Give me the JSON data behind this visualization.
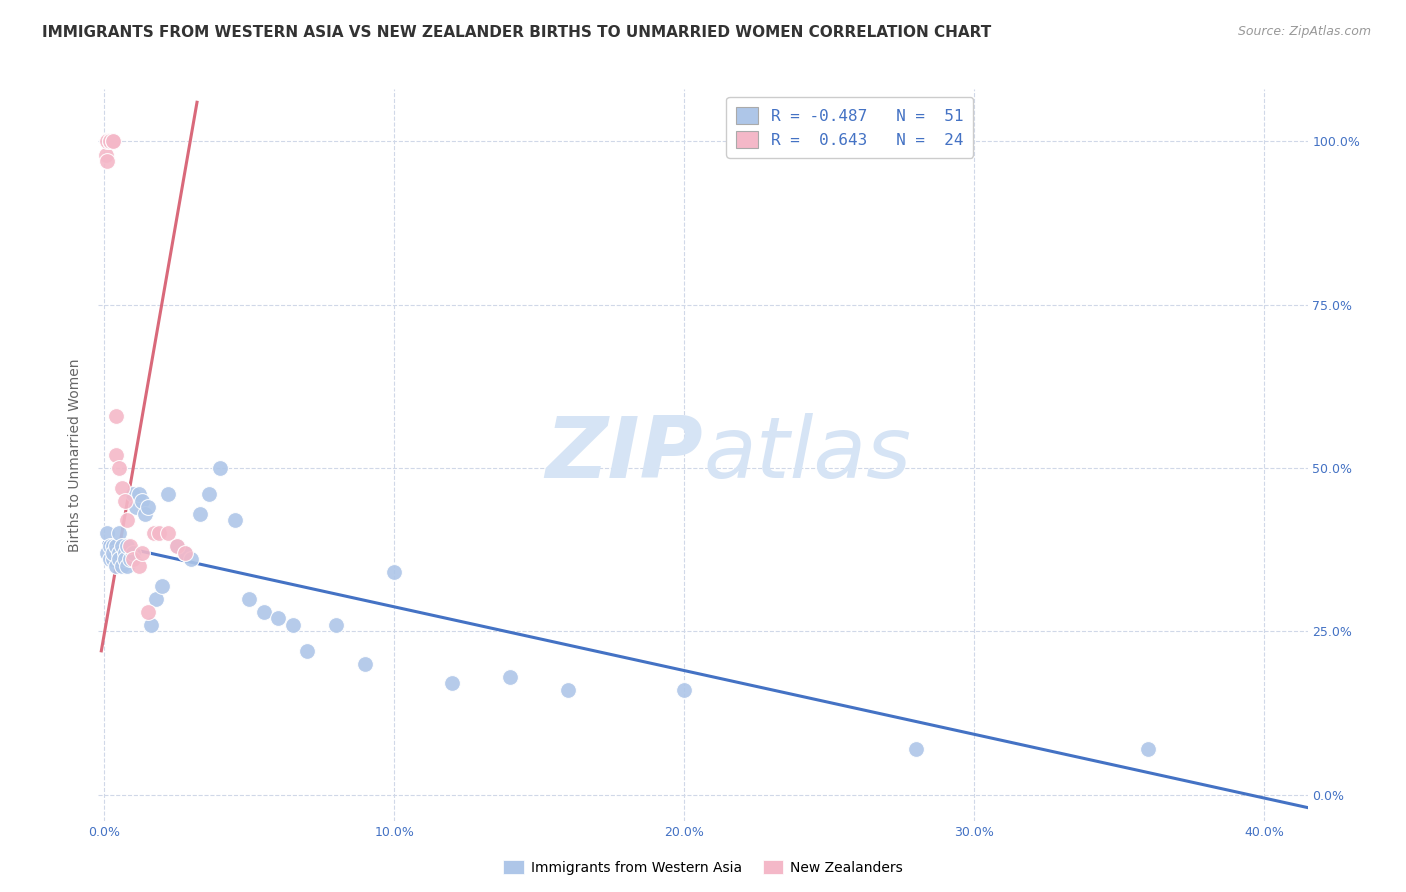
{
  "title": "IMMIGRANTS FROM WESTERN ASIA VS NEW ZEALANDER BIRTHS TO UNMARRIED WOMEN CORRELATION CHART",
  "source": "Source: ZipAtlas.com",
  "ylabel": "Births to Unmarried Women",
  "x_tick_labels": [
    "0.0%",
    "",
    "10.0%",
    "",
    "20.0%",
    "",
    "30.0%",
    "",
    "40.0%"
  ],
  "x_tick_positions": [
    0.0,
    0.05,
    0.1,
    0.15,
    0.2,
    0.25,
    0.3,
    0.35,
    0.4
  ],
  "y_tick_labels_right": [
    "100.0%",
    "75.0%",
    "50.0%",
    "25.0%",
    "0.0%"
  ],
  "y_tick_positions": [
    1.0,
    0.75,
    0.5,
    0.25,
    0.0
  ],
  "xlim": [
    -0.002,
    0.415
  ],
  "ylim": [
    -0.04,
    1.08
  ],
  "scatter_blue_color": "#aec6e8",
  "scatter_pink_color": "#f4b8c8",
  "line_blue_color": "#4472c4",
  "line_pink_color": "#d9697a",
  "legend_box_blue": "#aec6e8",
  "legend_box_pink": "#f4b8c8",
  "legend_text_color": "#4472c4",
  "grid_color": "#d0d8e8",
  "background_color": "#ffffff",
  "watermark_zip": "ZIP",
  "watermark_atlas": "atlas",
  "watermark_color": "#d6e4f5",
  "title_fontsize": 11,
  "source_fontsize": 9,
  "axis_label_fontsize": 10,
  "tick_fontsize": 9,
  "blue_scatter_x": [
    0.001,
    0.001,
    0.002,
    0.002,
    0.003,
    0.003,
    0.003,
    0.004,
    0.004,
    0.005,
    0.005,
    0.005,
    0.006,
    0.006,
    0.007,
    0.007,
    0.008,
    0.008,
    0.009,
    0.01,
    0.01,
    0.011,
    0.012,
    0.013,
    0.014,
    0.015,
    0.016,
    0.018,
    0.02,
    0.022,
    0.025,
    0.028,
    0.03,
    0.033,
    0.036,
    0.04,
    0.045,
    0.05,
    0.055,
    0.06,
    0.065,
    0.07,
    0.08,
    0.09,
    0.1,
    0.12,
    0.14,
    0.16,
    0.2,
    0.28,
    0.36
  ],
  "blue_scatter_y": [
    0.4,
    0.37,
    0.38,
    0.36,
    0.38,
    0.36,
    0.37,
    0.38,
    0.35,
    0.4,
    0.37,
    0.36,
    0.38,
    0.35,
    0.37,
    0.36,
    0.35,
    0.38,
    0.36,
    0.37,
    0.46,
    0.44,
    0.46,
    0.45,
    0.43,
    0.44,
    0.26,
    0.3,
    0.32,
    0.46,
    0.38,
    0.37,
    0.36,
    0.43,
    0.46,
    0.5,
    0.42,
    0.3,
    0.28,
    0.27,
    0.26,
    0.22,
    0.26,
    0.2,
    0.34,
    0.17,
    0.18,
    0.16,
    0.16,
    0.07,
    0.07
  ],
  "pink_scatter_x": [
    0.0005,
    0.001,
    0.001,
    0.002,
    0.002,
    0.002,
    0.003,
    0.003,
    0.004,
    0.004,
    0.005,
    0.006,
    0.007,
    0.008,
    0.009,
    0.01,
    0.012,
    0.013,
    0.015,
    0.017,
    0.019,
    0.022,
    0.025,
    0.028
  ],
  "pink_scatter_y": [
    0.98,
    1.0,
    0.97,
    1.0,
    1.0,
    1.0,
    1.0,
    1.0,
    0.58,
    0.52,
    0.5,
    0.47,
    0.45,
    0.42,
    0.38,
    0.36,
    0.35,
    0.37,
    0.28,
    0.4,
    0.4,
    0.4,
    0.38,
    0.37
  ],
  "blue_line_x": [
    0.0,
    0.415
  ],
  "blue_line_y": [
    0.385,
    -0.02
  ],
  "pink_line_x": [
    -0.001,
    0.032
  ],
  "pink_line_y": [
    0.22,
    1.06
  ]
}
